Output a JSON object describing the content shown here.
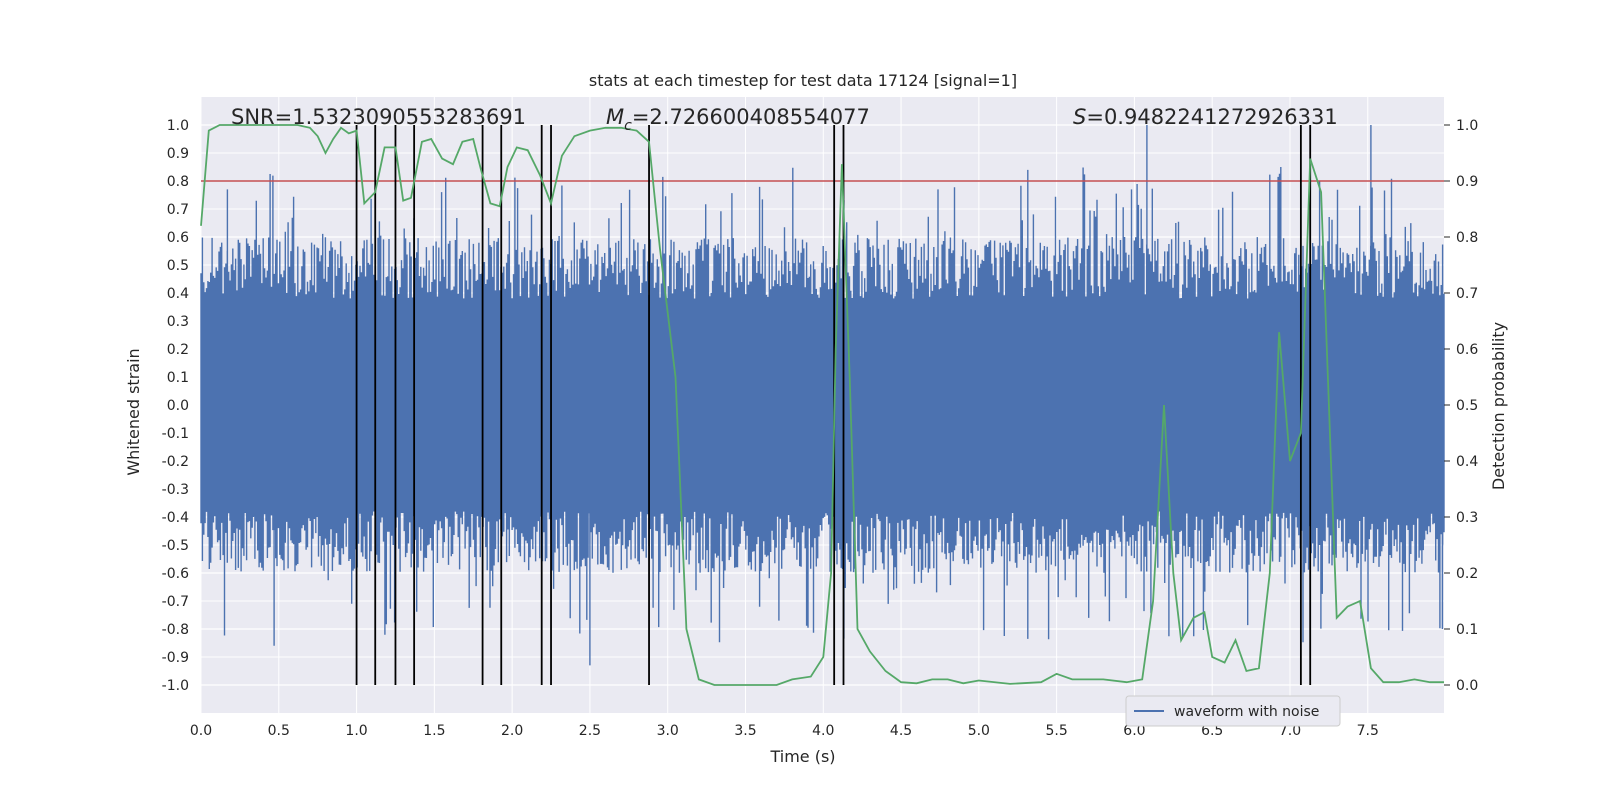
{
  "chart_data": {
    "type": "line",
    "title": "stats at each timestep for test data 17124 [signal=1]",
    "xlabel": "Time (s)",
    "ylabel": "Whitened strain",
    "y2label": "Detection probability",
    "xlim": [
      0.0,
      7.99
    ],
    "ylim": [
      -1.1,
      1.1
    ],
    "y2lim": [
      -0.05,
      1.05
    ],
    "x_ticks": [
      0.0,
      0.5,
      1.0,
      1.5,
      2.0,
      2.5,
      3.0,
      3.5,
      4.0,
      4.5,
      5.0,
      5.5,
      6.0,
      6.5,
      7.0,
      7.5
    ],
    "x_tick_labels": [
      "0.0",
      "0.5",
      "1.0",
      "1.5",
      "2.0",
      "2.5",
      "3.0",
      "3.5",
      "4.0",
      "4.5",
      "5.0",
      "5.5",
      "6.0",
      "6.5",
      "7.0",
      "7.5"
    ],
    "y_ticks": [
      1.0,
      0.9,
      0.8,
      0.7,
      0.6,
      0.5,
      0.4,
      0.3,
      0.2,
      0.1,
      0.0,
      -0.1,
      -0.2,
      -0.3,
      -0.4,
      -0.5,
      -0.6,
      -0.7,
      -0.8,
      -0.9,
      -1.0
    ],
    "y_tick_labels": [
      "1.0",
      "0.9",
      "0.8",
      "0.7",
      "0.6",
      "0.5",
      "0.4",
      "0.3",
      "0.2",
      "0.1",
      "0.0",
      "-0.1",
      "-0.2",
      "-0.3",
      "-0.4",
      "-0.5",
      "-0.6",
      "-0.7",
      "-0.8",
      "-0.9",
      "-1.0"
    ],
    "y2_ticks": [
      1.0,
      0.9,
      0.8,
      0.7,
      0.6,
      0.5,
      0.4,
      0.3,
      0.2,
      0.1,
      0.0
    ],
    "y2_tick_labels": [
      "1.0",
      "0.9",
      "0.8",
      "0.7",
      "0.6",
      "0.5",
      "0.4",
      "0.3",
      "0.2",
      "0.1",
      "0.0"
    ],
    "annotations": {
      "snr": "SNR=1.5323090553283691",
      "mc_prefix": "M",
      "mc_sub": "c",
      "mc_value": "=2.726600408554077",
      "s_prefix": "S",
      "s_value": "=0.9482241272926331"
    },
    "threshold": {
      "value": 0.8,
      "color": "#c44e52"
    },
    "waveform": {
      "name": "waveform with noise",
      "color": "#4c72b0",
      "typical_abs": 0.38,
      "max": 1.0,
      "min": -0.99,
      "samples": 900
    },
    "detection_probability": {
      "color": "#55a868",
      "points": [
        [
          0.0,
          0.82
        ],
        [
          0.05,
          0.99
        ],
        [
          0.12,
          1.0
        ],
        [
          0.3,
          1.0
        ],
        [
          0.5,
          1.0
        ],
        [
          0.62,
          1.0
        ],
        [
          0.7,
          0.995
        ],
        [
          0.75,
          0.98
        ],
        [
          0.8,
          0.95
        ],
        [
          0.85,
          0.975
        ],
        [
          0.9,
          0.995
        ],
        [
          0.95,
          0.985
        ],
        [
          1.0,
          0.99
        ],
        [
          1.05,
          0.86
        ],
        [
          1.12,
          0.88
        ],
        [
          1.18,
          0.96
        ],
        [
          1.25,
          0.96
        ],
        [
          1.3,
          0.865
        ],
        [
          1.35,
          0.87
        ],
        [
          1.42,
          0.97
        ],
        [
          1.48,
          0.975
        ],
        [
          1.55,
          0.94
        ],
        [
          1.62,
          0.93
        ],
        [
          1.68,
          0.97
        ],
        [
          1.75,
          0.975
        ],
        [
          1.8,
          0.92
        ],
        [
          1.86,
          0.86
        ],
        [
          1.92,
          0.855
        ],
        [
          1.97,
          0.925
        ],
        [
          2.03,
          0.96
        ],
        [
          2.1,
          0.955
        ],
        [
          2.18,
          0.91
        ],
        [
          2.25,
          0.86
        ],
        [
          2.32,
          0.945
        ],
        [
          2.4,
          0.98
        ],
        [
          2.5,
          0.99
        ],
        [
          2.6,
          0.995
        ],
        [
          2.7,
          0.995
        ],
        [
          2.8,
          0.99
        ],
        [
          2.88,
          0.97
        ],
        [
          2.95,
          0.78
        ],
        [
          3.05,
          0.55
        ],
        [
          3.12,
          0.1
        ],
        [
          3.2,
          0.01
        ],
        [
          3.3,
          0.0
        ],
        [
          3.5,
          0.0
        ],
        [
          3.7,
          0.0
        ],
        [
          3.8,
          0.01
        ],
        [
          3.92,
          0.015
        ],
        [
          4.0,
          0.05
        ],
        [
          4.05,
          0.2
        ],
        [
          4.08,
          0.6
        ],
        [
          4.12,
          0.93
        ],
        [
          4.17,
          0.55
        ],
        [
          4.22,
          0.1
        ],
        [
          4.3,
          0.06
        ],
        [
          4.4,
          0.025
        ],
        [
          4.5,
          0.005
        ],
        [
          4.6,
          0.003
        ],
        [
          4.7,
          0.01
        ],
        [
          4.8,
          0.01
        ],
        [
          4.9,
          0.003
        ],
        [
          5.0,
          0.008
        ],
        [
          5.2,
          0.002
        ],
        [
          5.4,
          0.005
        ],
        [
          5.5,
          0.02
        ],
        [
          5.6,
          0.01
        ],
        [
          5.8,
          0.01
        ],
        [
          5.95,
          0.005
        ],
        [
          6.05,
          0.01
        ],
        [
          6.12,
          0.15
        ],
        [
          6.19,
          0.5
        ],
        [
          6.25,
          0.2
        ],
        [
          6.3,
          0.08
        ],
        [
          6.38,
          0.12
        ],
        [
          6.45,
          0.13
        ],
        [
          6.5,
          0.05
        ],
        [
          6.58,
          0.04
        ],
        [
          6.65,
          0.08
        ],
        [
          6.72,
          0.025
        ],
        [
          6.8,
          0.03
        ],
        [
          6.87,
          0.2
        ],
        [
          6.93,
          0.63
        ],
        [
          7.0,
          0.4
        ],
        [
          7.07,
          0.45
        ],
        [
          7.13,
          0.94
        ],
        [
          7.2,
          0.88
        ],
        [
          7.3,
          0.12
        ],
        [
          7.37,
          0.14
        ],
        [
          7.45,
          0.15
        ],
        [
          7.52,
          0.03
        ],
        [
          7.6,
          0.005
        ],
        [
          7.7,
          0.005
        ],
        [
          7.8,
          0.01
        ],
        [
          7.9,
          0.005
        ],
        [
          7.99,
          0.005
        ]
      ]
    },
    "event_markers": [
      1.0,
      1.12,
      1.25,
      1.37,
      1.81,
      1.93,
      2.19,
      2.25,
      2.88,
      4.07,
      4.13,
      7.07,
      7.13
    ],
    "legend": {
      "label": "waveform with noise",
      "placement": "lower-right"
    }
  }
}
